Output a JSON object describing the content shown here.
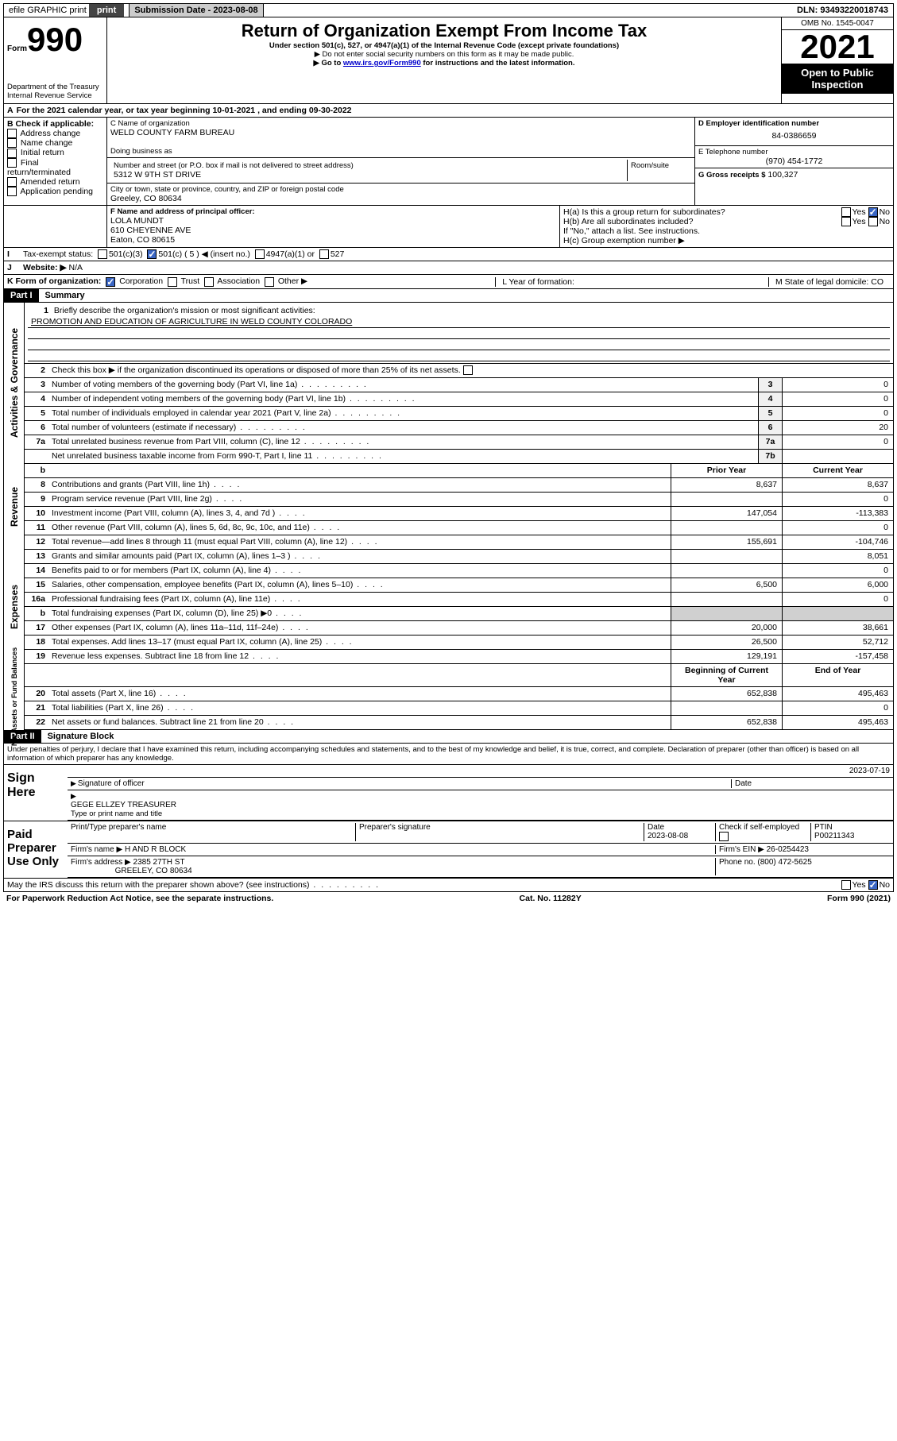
{
  "topbar": {
    "efile": "efile GRAPHIC print",
    "sub_label": "Submission Date - 2023-08-08",
    "dln": "DLN: 93493220018743"
  },
  "header": {
    "form_label": "Form",
    "form_num": "990",
    "dept": "Department of the Treasury Internal Revenue Service",
    "title": "Return of Organization Exempt From Income Tax",
    "subtitle": "Under section 501(c), 527, or 4947(a)(1) of the Internal Revenue Code (except private foundations)",
    "note1": "▶ Do not enter social security numbers on this form as it may be made public.",
    "note2_pre": "▶ Go to ",
    "note2_link": "www.irs.gov/Form990",
    "note2_post": " for instructions and the latest information.",
    "omb": "OMB No. 1545-0047",
    "year": "2021",
    "open": "Open to Public Inspection"
  },
  "row_a": {
    "text": "For the 2021 calendar year, or tax year beginning 10-01-2021   , and ending 09-30-2022"
  },
  "box_b": {
    "label": "B Check if applicable:",
    "opts": [
      "Address change",
      "Name change",
      "Initial return",
      "Final return/terminated",
      "Amended return",
      "Application pending"
    ]
  },
  "box_c": {
    "name_lbl": "C Name of organization",
    "name": "WELD COUNTY FARM BUREAU",
    "dba_lbl": "Doing business as",
    "addr_lbl": "Number and street (or P.O. box if mail is not delivered to street address)",
    "room_lbl": "Room/suite",
    "addr": "5312 W 9TH ST DRIVE",
    "city_lbl": "City or town, state or province, country, and ZIP or foreign postal code",
    "city": "Greeley, CO  80634"
  },
  "box_d": {
    "lbl": "D Employer identification number",
    "val": "84-0386659"
  },
  "box_e": {
    "lbl": "E Telephone number",
    "val": "(970) 454-1772"
  },
  "box_g": {
    "lbl": "G Gross receipts $",
    "val": "100,327"
  },
  "box_f": {
    "lbl": "F Name and address of principal officer:",
    "name": "LOLA MUNDT",
    "addr1": "610 CHEYENNE AVE",
    "addr2": "Eaton, CO  80615"
  },
  "box_h": {
    "ha": "H(a)  Is this a group return for subordinates?",
    "hb": "H(b)  Are all subordinates included?",
    "hb_note": "If \"No,\" attach a list. See instructions.",
    "hc": "H(c)  Group exemption number ▶"
  },
  "row_i": {
    "lbl": "Tax-exempt status:",
    "o1": "501(c)(3)",
    "o2": "501(c) ( 5 ) ◀ (insert no.)",
    "o3": "4947(a)(1) or",
    "o4": "527"
  },
  "row_j": {
    "lbl": "Website: ▶",
    "val": "N/A"
  },
  "row_k": {
    "k_lbl": "K Form of organization:",
    "k_opts": [
      "Corporation",
      "Trust",
      "Association",
      "Other ▶"
    ],
    "l": "L Year of formation:",
    "m": "M State of legal domicile: CO"
  },
  "part1": {
    "hdr": "Part I",
    "title": "Summary",
    "q1": "Briefly describe the organization's mission or most significant activities:",
    "mission": "PROMOTION AND EDUCATION OF AGRICULTURE IN WELD COUNTY COLORADO",
    "q2": "Check this box ▶       if the organization discontinued its operations or disposed of more than 25% of its net assets.",
    "lines_gov": [
      {
        "n": "3",
        "t": "Number of voting members of the governing body (Part VI, line 1a)",
        "b": "3",
        "v": "0"
      },
      {
        "n": "4",
        "t": "Number of independent voting members of the governing body (Part VI, line 1b)",
        "b": "4",
        "v": "0"
      },
      {
        "n": "5",
        "t": "Total number of individuals employed in calendar year 2021 (Part V, line 2a)",
        "b": "5",
        "v": "0"
      },
      {
        "n": "6",
        "t": "Total number of volunteers (estimate if necessary)",
        "b": "6",
        "v": "20"
      },
      {
        "n": "7a",
        "t": "Total unrelated business revenue from Part VIII, column (C), line 12",
        "b": "7a",
        "v": "0"
      },
      {
        "n": "",
        "t": "Net unrelated business taxable income from Form 990-T, Part I, line 11",
        "b": "7b",
        "v": ""
      }
    ],
    "col_hdr": {
      "b": "b",
      "py": "Prior Year",
      "cy": "Current Year"
    },
    "lines_rev": [
      {
        "n": "8",
        "t": "Contributions and grants (Part VIII, line 1h)",
        "py": "8,637",
        "cy": "8,637"
      },
      {
        "n": "9",
        "t": "Program service revenue (Part VIII, line 2g)",
        "py": "",
        "cy": "0"
      },
      {
        "n": "10",
        "t": "Investment income (Part VIII, column (A), lines 3, 4, and 7d )",
        "py": "147,054",
        "cy": "-113,383"
      },
      {
        "n": "11",
        "t": "Other revenue (Part VIII, column (A), lines 5, 6d, 8c, 9c, 10c, and 11e)",
        "py": "",
        "cy": "0"
      },
      {
        "n": "12",
        "t": "Total revenue—add lines 8 through 11 (must equal Part VIII, column (A), line 12)",
        "py": "155,691",
        "cy": "-104,746"
      }
    ],
    "lines_exp": [
      {
        "n": "13",
        "t": "Grants and similar amounts paid (Part IX, column (A), lines 1–3 )",
        "py": "",
        "cy": "8,051"
      },
      {
        "n": "14",
        "t": "Benefits paid to or for members (Part IX, column (A), line 4)",
        "py": "",
        "cy": "0"
      },
      {
        "n": "15",
        "t": "Salaries, other compensation, employee benefits (Part IX, column (A), lines 5–10)",
        "py": "6,500",
        "cy": "6,000"
      },
      {
        "n": "16a",
        "t": "Professional fundraising fees (Part IX, column (A), line 11e)",
        "py": "",
        "cy": "0"
      },
      {
        "n": "b",
        "t": "Total fundraising expenses (Part IX, column (D), line 25) ▶0",
        "py": "SHADE",
        "cy": "SHADE"
      },
      {
        "n": "17",
        "t": "Other expenses (Part IX, column (A), lines 11a–11d, 11f–24e)",
        "py": "20,000",
        "cy": "38,661"
      },
      {
        "n": "18",
        "t": "Total expenses. Add lines 13–17 (must equal Part IX, column (A), line 25)",
        "py": "26,500",
        "cy": "52,712"
      },
      {
        "n": "19",
        "t": "Revenue less expenses. Subtract line 18 from line 12",
        "py": "129,191",
        "cy": "-157,458"
      }
    ],
    "net_hdr": {
      "py": "Beginning of Current Year",
      "cy": "End of Year"
    },
    "lines_net": [
      {
        "n": "20",
        "t": "Total assets (Part X, line 16)",
        "py": "652,838",
        "cy": "495,463"
      },
      {
        "n": "21",
        "t": "Total liabilities (Part X, line 26)",
        "py": "",
        "cy": "0"
      },
      {
        "n": "22",
        "t": "Net assets or fund balances. Subtract line 21 from line 20",
        "py": "652,838",
        "cy": "495,463"
      }
    ]
  },
  "side_labels": {
    "gov": "Activities & Governance",
    "rev": "Revenue",
    "exp": "Expenses",
    "net": "Net Assets or Fund Balances"
  },
  "part2": {
    "hdr": "Part II",
    "title": "Signature Block",
    "decl": "Under penalties of perjury, I declare that I have examined this return, including accompanying schedules and statements, and to the best of my knowledge and belief, it is true, correct, and complete. Declaration of preparer (other than officer) is based on all information of which preparer has any knowledge.",
    "sign_here": "Sign Here",
    "sig_officer": "Signature of officer",
    "sig_date": "2023-07-19",
    "date_lbl": "Date",
    "officer_name": "GEGE ELLZEY TREASURER",
    "officer_type": "Type or print name and title",
    "paid": "Paid Preparer Use Only",
    "prep_name_lbl": "Print/Type preparer's name",
    "prep_sig_lbl": "Preparer's signature",
    "prep_date_lbl": "Date",
    "prep_date": "2023-08-08",
    "prep_check": "Check        if self-employed",
    "ptin_lbl": "PTIN",
    "ptin": "P00211343",
    "firm_name_lbl": "Firm's name    ▶",
    "firm_name": "H AND R BLOCK",
    "firm_ein_lbl": "Firm's EIN ▶",
    "firm_ein": "26-0254423",
    "firm_addr_lbl": "Firm's address ▶",
    "firm_addr1": "2385 27TH ST",
    "firm_addr2": "GREELEY, CO  80634",
    "phone_lbl": "Phone no.",
    "phone": "(800) 472-5625",
    "may_irs": "May the IRS discuss this return with the preparer shown above? (see instructions)"
  },
  "footer": {
    "left": "For Paperwork Reduction Act Notice, see the separate instructions.",
    "mid": "Cat. No. 11282Y",
    "right": "Form 990 (2021)"
  },
  "yn": {
    "yes": "Yes",
    "no": "No"
  }
}
